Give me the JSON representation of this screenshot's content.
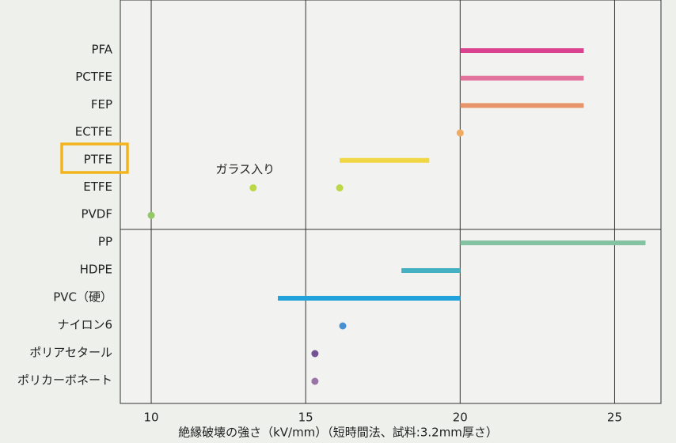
{
  "chart_data": {
    "type": "range",
    "x_label": "絶縁破壊の強さ（kV/mm）（短時間法、試料:3.2mm厚さ）",
    "annotation": "ガラス入り",
    "categories": [
      "PFA",
      "PCTFE",
      "FEP",
      "ECTFE",
      "PTFE",
      "ETFE",
      "PVDF",
      "PP",
      "HDPE",
      "PVC（硬）",
      "ナイロン6",
      "ポリアセタール",
      "ポリカーボネート"
    ],
    "rows": [
      {
        "color": "#d8428e",
        "range": [
          20,
          24
        ]
      },
      {
        "color": "#e2739c",
        "range": [
          20,
          24
        ]
      },
      {
        "color": "#e8946a",
        "range": [
          20,
          24
        ]
      },
      {
        "color": "#f0aa62",
        "points": [
          20
        ]
      },
      {
        "color": "#f0d642",
        "range": [
          16.1,
          19
        ]
      },
      {
        "color": "#bcd846",
        "points": [
          13.3,
          16.1
        ]
      },
      {
        "color": "#94c866",
        "points": [
          10
        ]
      },
      {
        "color": "#84c2a2",
        "range": [
          20,
          26
        ]
      },
      {
        "color": "#44b0c2",
        "range": [
          18.1,
          20
        ]
      },
      {
        "color": "#22a2dc",
        "range": [
          14.1,
          20
        ]
      },
      {
        "color": "#4a90d0",
        "points": [
          16.2
        ]
      },
      {
        "color": "#725292",
        "points": [
          15.3
        ]
      },
      {
        "color": "#9a74a6",
        "points": [
          15.3
        ]
      }
    ],
    "xlim": [
      9,
      26.5
    ],
    "xticks": [
      10,
      15,
      20,
      25
    ],
    "grid": true
  }
}
